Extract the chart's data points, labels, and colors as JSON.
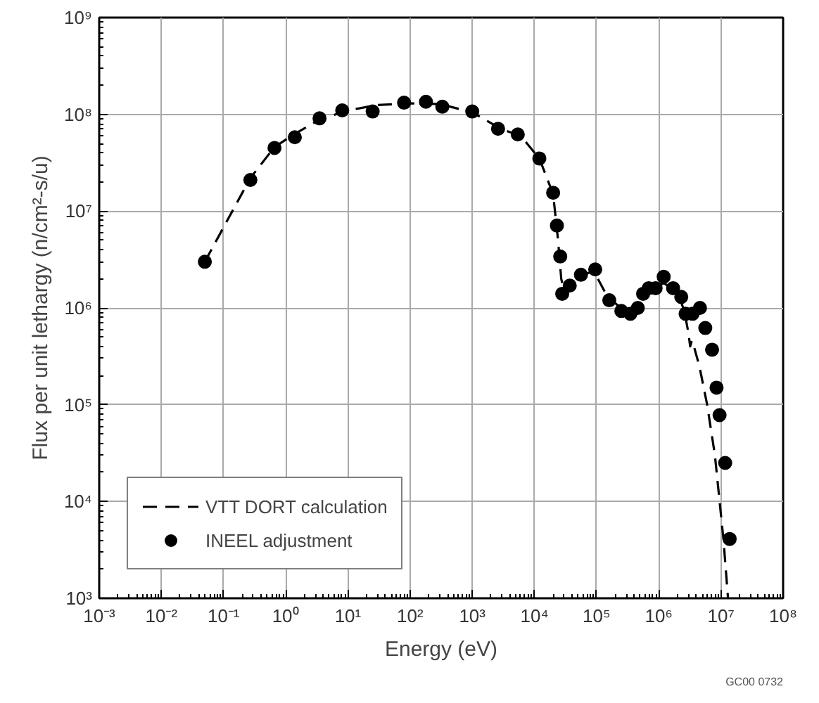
{
  "chart_data": {
    "type": "line",
    "xlabel": "Energy (eV)",
    "ylabel": "Flux per unit lethargy (n/cm²-s/u)",
    "log": "xy",
    "grid": true,
    "legend": "bottom left",
    "xlim": [
      0.001,
      100000000
    ],
    "ylim": [
      1000,
      1000000000
    ],
    "xticks": [
      {
        "value": 0.001,
        "label": "10⁻³"
      },
      {
        "value": 0.01,
        "label": "10⁻²"
      },
      {
        "value": 0.1,
        "label": "10⁻¹"
      },
      {
        "value": 1,
        "label": "10⁰"
      },
      {
        "value": 10,
        "label": "10¹"
      },
      {
        "value": 100,
        "label": "10²"
      },
      {
        "value": 1000,
        "label": "10³"
      },
      {
        "value": 10000,
        "label": "10⁴"
      },
      {
        "value": 100000,
        "label": "10⁵"
      },
      {
        "value": 1000000,
        "label": "10⁶"
      },
      {
        "value": 10000000,
        "label": "10⁷"
      },
      {
        "value": 100000000,
        "label": "10⁸"
      }
    ],
    "yticks": [
      {
        "value": 1000,
        "label": "10³"
      },
      {
        "value": 10000,
        "label": "10⁴"
      },
      {
        "value": 100000,
        "label": "10⁵"
      },
      {
        "value": 1000000,
        "label": "10⁶"
      },
      {
        "value": 10000000,
        "label": "10⁷"
      },
      {
        "value": 100000000,
        "label": "10⁸"
      },
      {
        "value": 1000000000,
        "label": "10⁹"
      }
    ],
    "series": [
      {
        "name": "VTT DORT calculation",
        "line_style": "dashed",
        "marker": "none",
        "color": "#000000",
        "x": [
          0.05,
          0.27,
          0.66,
          1.4,
          3.5,
          10,
          30,
          100,
          300,
          1000,
          3000,
          6000,
          12000,
          20000,
          24000,
          27000,
          30000,
          50000,
          90000,
          150000,
          300000,
          500000,
          800000,
          1200000,
          2000000,
          2600000,
          3000000,
          3200000,
          3400000,
          3600000,
          4500000,
          6000000,
          8000000,
          11000000,
          13000000
        ],
        "values": [
          3000000,
          22000000,
          46000000,
          63000000,
          88000000,
          110000000,
          125000000,
          130000000,
          128000000,
          105000000,
          70000000,
          60000000,
          35000000,
          15000000,
          5000000,
          2000000,
          1500000,
          2100000,
          2400000,
          1300000,
          900000,
          1100000,
          1600000,
          1800000,
          1500000,
          900000,
          550000,
          400000,
          460000,
          420000,
          250000,
          100000,
          30000,
          4000,
          1000
        ]
      },
      {
        "name": "INEEL adjustment",
        "type": "scatter",
        "marker": "circle",
        "color": "#000000",
        "x": [
          0.05,
          0.27,
          0.66,
          1.4,
          3.5,
          8.1,
          25,
          80,
          180,
          330,
          1000,
          2600,
          5400,
          12000,
          20000,
          23000,
          26000,
          28000,
          37000,
          56000,
          95000,
          160000,
          250000,
          350000,
          460000,
          560000,
          690000,
          890000,
          1200000,
          1700000,
          2300000,
          2700000,
          3500000,
          4600000,
          5600000,
          7200000,
          8500000,
          9500000,
          11700000,
          13800000
        ],
        "values": [
          3000000,
          21000000,
          45000000,
          58000000,
          91000000,
          110000000,
          107000000,
          132000000,
          135000000,
          120000000,
          107000000,
          71000000,
          62000000,
          35000000,
          15500000,
          7100000,
          3400000,
          1400000,
          1700000,
          2200000,
          2500000,
          1200000,
          930000,
          870000,
          1000000,
          1400000,
          1600000,
          1600000,
          2100000,
          1600000,
          1300000,
          870000,
          870000,
          1000000,
          620000,
          370000,
          150000,
          78000,
          25000,
          4100
        ]
      }
    ],
    "annotations": [
      "GC00 0732"
    ]
  }
}
